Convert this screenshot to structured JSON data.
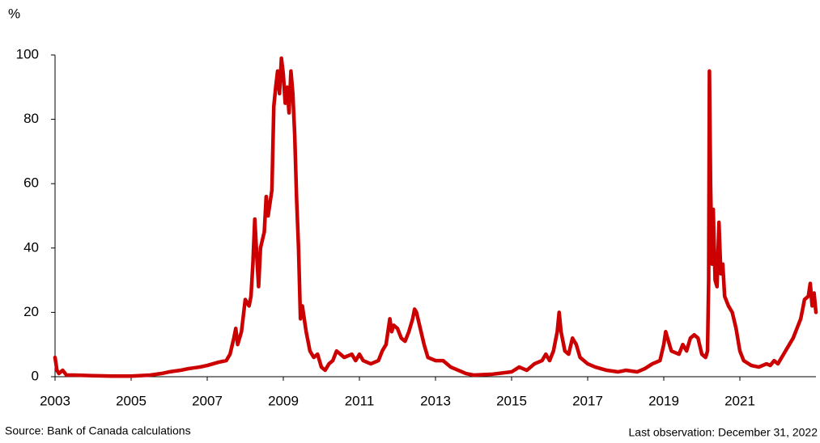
{
  "chart_data": {
    "type": "line",
    "y_unit": "%",
    "source": "Source: Bank of Canada calculations",
    "note": "Last observation: December 31, 2022",
    "xlim": [
      2003,
      2023
    ],
    "xticks": [
      2003,
      2005,
      2007,
      2009,
      2011,
      2013,
      2015,
      2017,
      2019,
      2021
    ],
    "ylim": [
      0,
      100
    ],
    "yticks": [
      0,
      20,
      40,
      60,
      80,
      100
    ],
    "x": [
      2003.0,
      2003.05,
      2003.1,
      2003.2,
      2003.3,
      2003.5,
      2004,
      2004.5,
      2005,
      2005.5,
      2005.8,
      2006,
      2006.3,
      2006.5,
      2006.8,
      2007,
      2007.3,
      2007.5,
      2007.6,
      2007.7,
      2007.75,
      2007.8,
      2007.9,
      2008,
      2008.1,
      2008.15,
      2008.2,
      2008.25,
      2008.3,
      2008.35,
      2008.4,
      2008.5,
      2008.55,
      2008.6,
      2008.7,
      2008.75,
      2008.8,
      2008.85,
      2008.9,
      2008.95,
      2009.0,
      2009.05,
      2009.1,
      2009.15,
      2009.2,
      2009.25,
      2009.3,
      2009.35,
      2009.4,
      2009.45,
      2009.5,
      2009.6,
      2009.7,
      2009.8,
      2009.9,
      2010,
      2010.1,
      2010.2,
      2010.3,
      2010.4,
      2010.5,
      2010.6,
      2010.8,
      2010.9,
      2011,
      2011.1,
      2011.3,
      2011.5,
      2011.6,
      2011.7,
      2011.8,
      2011.85,
      2011.9,
      2012,
      2012.1,
      2012.2,
      2012.3,
      2012.4,
      2012.45,
      2012.5,
      2012.6,
      2012.7,
      2012.8,
      2013,
      2013.2,
      2013.4,
      2013.6,
      2013.8,
      2014,
      2014.5,
      2015,
      2015.2,
      2015.4,
      2015.6,
      2015.8,
      2015.9,
      2016,
      2016.1,
      2016.2,
      2016.25,
      2016.3,
      2016.4,
      2016.5,
      2016.6,
      2016.7,
      2016.8,
      2017,
      2017.2,
      2017.5,
      2017.8,
      2018,
      2018.3,
      2018.5,
      2018.7,
      2018.9,
      2019,
      2019.05,
      2019.1,
      2019.2,
      2019.4,
      2019.5,
      2019.6,
      2019.7,
      2019.8,
      2019.9,
      2020,
      2020.1,
      2020.15,
      2020.18,
      2020.2,
      2020.23,
      2020.27,
      2020.3,
      2020.35,
      2020.4,
      2020.45,
      2020.5,
      2020.55,
      2020.6,
      2020.7,
      2020.8,
      2020.9,
      2021,
      2021.1,
      2021.3,
      2021.5,
      2021.7,
      2021.8,
      2021.9,
      2022,
      2022.1,
      2022.2,
      2022.3,
      2022.4,
      2022.5,
      2022.6,
      2022.7,
      2022.8,
      2022.85,
      2022.9,
      2022.95,
      2023
    ],
    "series": [
      {
        "color": "#cc0000",
        "values": [
          6,
          2,
          1,
          2,
          0.5,
          0.5,
          0.3,
          0.2,
          0.2,
          0.5,
          1,
          1.5,
          2,
          2.5,
          3,
          3.5,
          4.5,
          5,
          7,
          12,
          15,
          10,
          14,
          24,
          22,
          25,
          35,
          49,
          38,
          28,
          40,
          45,
          56,
          50,
          58,
          84,
          90,
          95,
          88,
          99,
          94,
          85,
          90,
          82,
          95,
          88,
          75,
          55,
          40,
          18,
          22,
          14,
          8,
          6,
          7,
          3,
          2,
          4,
          5,
          8,
          7,
          6,
          7,
          5,
          7,
          5,
          4,
          5,
          8,
          10,
          18,
          14,
          16,
          15,
          12,
          11,
          14,
          18,
          21,
          20,
          15,
          10,
          6,
          5,
          5,
          3,
          2,
          1,
          0.5,
          0.8,
          1.5,
          3,
          2,
          4,
          5,
          7,
          5,
          8,
          14,
          20,
          14,
          8,
          7,
          12,
          10,
          6,
          4,
          3,
          2,
          1.5,
          2,
          1.5,
          2.5,
          4,
          5,
          10,
          14,
          12,
          8,
          7,
          10,
          8,
          12,
          13,
          12,
          7,
          6,
          8,
          30,
          95,
          60,
          35,
          52,
          30,
          28,
          48,
          32,
          35,
          25,
          22,
          20,
          15,
          8,
          5,
          3.5,
          3,
          4,
          3.5,
          5,
          4,
          6,
          8,
          10,
          12,
          15,
          18,
          24,
          25,
          29,
          22,
          26,
          20
        ]
      }
    ]
  }
}
